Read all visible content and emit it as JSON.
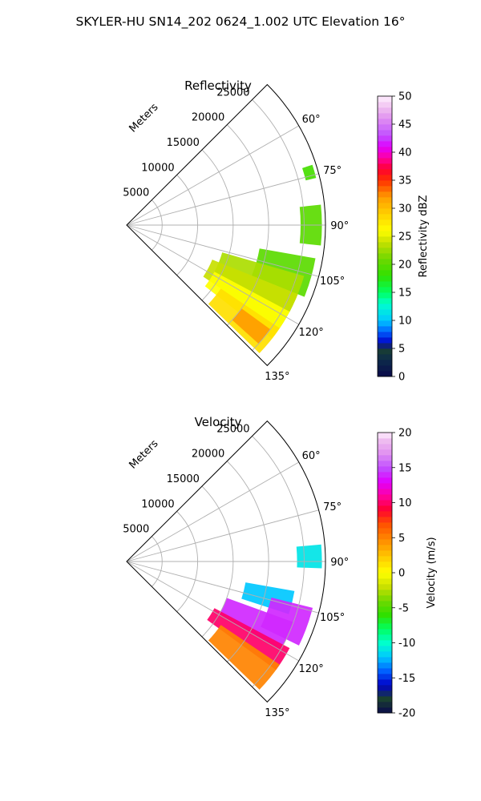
{
  "figure": {
    "title": "SKYLER-HU  SN14_202  0624_1.002 UTC Elevation 16°"
  },
  "chart_data": [
    {
      "type": "polar-sector",
      "title": "Reflectivity",
      "range_label": "Meters",
      "range_ticks": [
        5000,
        10000,
        15000,
        20000,
        25000
      ],
      "range_max": 28000,
      "azimuth_range_deg": [
        45,
        135
      ],
      "azimuth_ticks": [
        60,
        75,
        90,
        105,
        120,
        135
      ],
      "grid": true,
      "colorbar": {
        "label": "Reflectivity dBZ",
        "min": 0,
        "max": 50,
        "ticks": [
          0,
          5,
          10,
          15,
          20,
          25,
          30,
          35,
          40,
          45,
          50
        ],
        "stops": [
          [
            0,
            "#0a0a4a"
          ],
          [
            3,
            "#0c2a4a"
          ],
          [
            5,
            "#1a4030"
          ],
          [
            6,
            "#0000c8"
          ],
          [
            8,
            "#0060ff"
          ],
          [
            10,
            "#00c8ff"
          ],
          [
            13,
            "#00ffcc"
          ],
          [
            15,
            "#00ff60"
          ],
          [
            18,
            "#30e000"
          ],
          [
            21,
            "#70d800"
          ],
          [
            24,
            "#c8e000"
          ],
          [
            26,
            "#ffff00"
          ],
          [
            29,
            "#ffd000"
          ],
          [
            32,
            "#ff9c00"
          ],
          [
            35,
            "#ff3000"
          ],
          [
            37,
            "#ff0030"
          ],
          [
            39,
            "#ff00a0"
          ],
          [
            41,
            "#e000ff"
          ],
          [
            43,
            "#c050ff"
          ],
          [
            46,
            "#e090f0"
          ],
          [
            48,
            "#f0c0f0"
          ],
          [
            50,
            "#fff0ff"
          ]
        ]
      },
      "echo_regions": [
        {
          "az_start": 100,
          "az_end": 112,
          "r_start": 19000,
          "r_end": 27000,
          "value": 20
        },
        {
          "az_start": 106,
          "az_end": 118,
          "r_start": 14000,
          "r_end": 26000,
          "value": 23
        },
        {
          "az_start": 112,
          "az_end": 124,
          "r_start": 13000,
          "r_end": 26000,
          "value": 24
        },
        {
          "az_start": 118,
          "az_end": 128,
          "r_start": 14000,
          "r_end": 26000,
          "value": 26
        },
        {
          "az_start": 124,
          "az_end": 134,
          "r_start": 16000,
          "r_end": 26000,
          "value": 28
        },
        {
          "az_start": 126,
          "az_end": 132,
          "r_start": 20000,
          "r_end": 25000,
          "value": 32
        },
        {
          "az_start": 84,
          "az_end": 96,
          "r_start": 24500,
          "r_end": 27500,
          "value": 20
        },
        {
          "az_start": 72,
          "az_end": 76,
          "r_start": 26000,
          "r_end": 27500,
          "value": 19
        }
      ]
    },
    {
      "type": "polar-sector",
      "title": "Velocity",
      "range_label": "Meters",
      "range_ticks": [
        5000,
        10000,
        15000,
        20000,
        25000
      ],
      "range_max": 28000,
      "azimuth_range_deg": [
        45,
        135
      ],
      "azimuth_ticks": [
        60,
        75,
        90,
        105,
        120,
        135
      ],
      "grid": true,
      "colorbar": {
        "label": "Velocity (m/s)",
        "min": -20,
        "max": 20,
        "ticks": [
          -20,
          -15,
          -10,
          -5,
          0,
          5,
          10,
          15,
          20
        ],
        "stops": [
          [
            -20,
            "#0a0a4a"
          ],
          [
            -18,
            "#1a4030"
          ],
          [
            -16,
            "#0000c8"
          ],
          [
            -14,
            "#0060ff"
          ],
          [
            -12,
            "#00c8ff"
          ],
          [
            -10,
            "#00ffcc"
          ],
          [
            -8,
            "#00ff60"
          ],
          [
            -6,
            "#30e000"
          ],
          [
            -4,
            "#70d800"
          ],
          [
            -2,
            "#c8e000"
          ],
          [
            0,
            "#ffff00"
          ],
          [
            2,
            "#ffd000"
          ],
          [
            4,
            "#ff9c00"
          ],
          [
            7,
            "#ff5000"
          ],
          [
            9,
            "#ff0030"
          ],
          [
            11,
            "#ff00a0"
          ],
          [
            13,
            "#e000ff"
          ],
          [
            15,
            "#c050ff"
          ],
          [
            17,
            "#e090f0"
          ],
          [
            19,
            "#f0c0f0"
          ],
          [
            20,
            "#fff0ff"
          ]
        ]
      },
      "echo_regions": [
        {
          "az_start": 100,
          "az_end": 108,
          "r_start": 17000,
          "r_end": 24000,
          "value": -12
        },
        {
          "az_start": 104,
          "az_end": 116,
          "r_start": 21000,
          "r_end": 27000,
          "value": 14
        },
        {
          "az_start": 110,
          "az_end": 120,
          "r_start": 15000,
          "r_end": 25000,
          "value": 14
        },
        {
          "az_start": 118,
          "az_end": 126,
          "r_start": 14000,
          "r_end": 26000,
          "value": 10
        },
        {
          "az_start": 124,
          "az_end": 134,
          "r_start": 16000,
          "r_end": 26000,
          "value": 5
        },
        {
          "az_start": 85,
          "az_end": 92,
          "r_start": 24000,
          "r_end": 27500,
          "value": -11
        }
      ]
    }
  ]
}
